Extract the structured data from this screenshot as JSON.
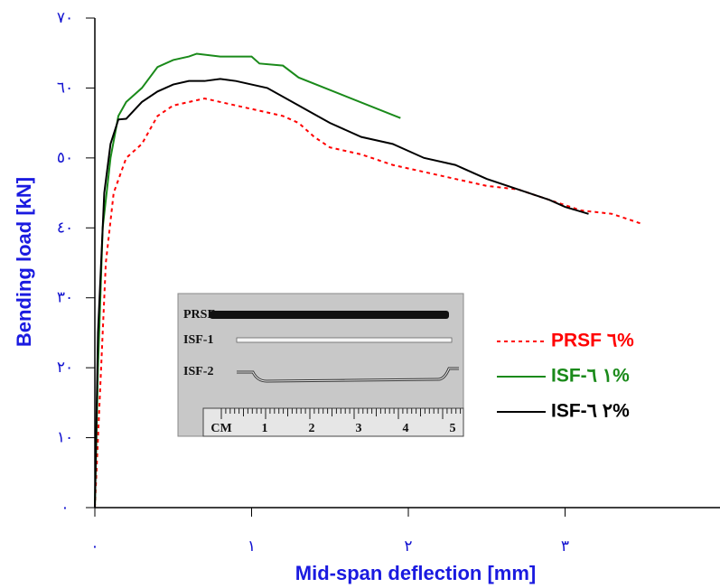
{
  "chart_data": {
    "type": "line",
    "ylabel": "Bending load [kN]",
    "xlabel": "Mid-span deflection [mm]",
    "xlim": [
      0,
      4
    ],
    "ylim": [
      0,
      70
    ],
    "xticks": [
      {
        "value": 0,
        "label": "٠"
      },
      {
        "value": 1,
        "label": "١"
      },
      {
        "value": 2,
        "label": "٢"
      },
      {
        "value": 3,
        "label": "٣"
      }
    ],
    "yticks": [
      {
        "value": 0,
        "label": "٠"
      },
      {
        "value": 10,
        "label": "١٠"
      },
      {
        "value": 20,
        "label": "٢٠"
      },
      {
        "value": 30,
        "label": "٣٠"
      },
      {
        "value": 40,
        "label": "٤٠"
      },
      {
        "value": 50,
        "label": "٥٠"
      },
      {
        "value": 60,
        "label": "٦٠"
      },
      {
        "value": 70,
        "label": "٧٠"
      }
    ],
    "series": [
      {
        "name": "PRSF ٦%",
        "color": "#ff0000",
        "dashed": true,
        "x": [
          0,
          0.03,
          0.07,
          0.12,
          0.2,
          0.3,
          0.4,
          0.5,
          0.6,
          0.7,
          0.8,
          0.9,
          1.0,
          1.1,
          1.2,
          1.3,
          1.4,
          1.5,
          1.7,
          1.9,
          2.1,
          2.3,
          2.5,
          2.7,
          2.9,
          3.1,
          3.3,
          3.5
        ],
        "values": [
          0,
          15,
          35,
          45,
          50,
          52,
          56,
          57.5,
          58,
          58.5,
          58,
          57.5,
          57,
          56.5,
          56,
          55,
          53,
          51.5,
          50.5,
          49,
          48,
          47,
          46,
          45.5,
          44,
          42.5,
          42,
          40.5
        ]
      },
      {
        "name": "ISF-١ ٦%",
        "color": "#1a8a1a",
        "dashed": false,
        "x": [
          0,
          0.02,
          0.05,
          0.1,
          0.15,
          0.2,
          0.3,
          0.4,
          0.5,
          0.6,
          0.65,
          0.8,
          1.0,
          1.05,
          1.2,
          1.3,
          1.95
        ],
        "values": [
          0,
          20,
          40,
          50,
          56,
          58,
          60,
          63,
          64,
          64.5,
          64.9,
          64.5,
          64.5,
          63.5,
          63.2,
          61.5,
          55.7
        ]
      },
      {
        "name": "ISF-٢ ٦%",
        "color": "#000000",
        "dashed": false,
        "x": [
          0,
          0.02,
          0.06,
          0.1,
          0.15,
          0.2,
          0.3,
          0.4,
          0.5,
          0.6,
          0.7,
          0.8,
          0.9,
          1.0,
          1.1,
          1.3,
          1.5,
          1.7,
          1.9,
          2.1,
          2.3,
          2.5,
          2.7,
          2.9,
          3.0,
          3.15
        ],
        "values": [
          0,
          25,
          45,
          52,
          55.5,
          55.6,
          58,
          59.5,
          60.5,
          61,
          61,
          61.3,
          61,
          60.5,
          60,
          57.5,
          55,
          53,
          52,
          50,
          49,
          47,
          45.5,
          44,
          43,
          42
        ]
      }
    ],
    "inset_labels": [
      "PRSF",
      "ISF-1",
      "ISF-2"
    ],
    "ruler_labels": [
      "CM",
      "1",
      "2",
      "3",
      "4",
      "5"
    ]
  }
}
